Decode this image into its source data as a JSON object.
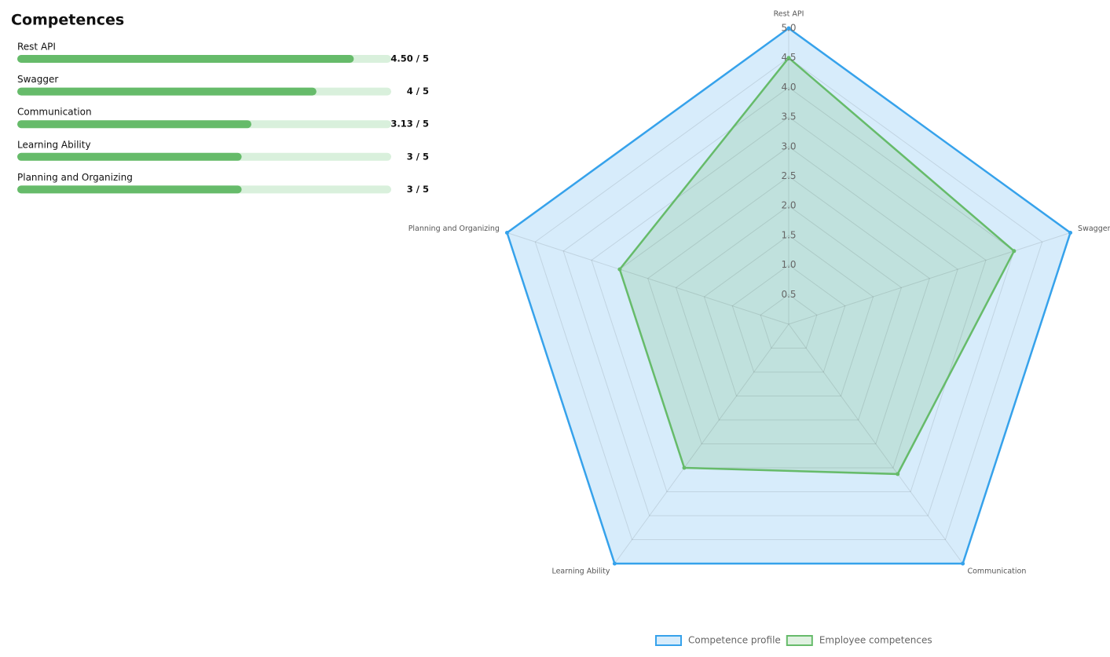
{
  "title": "Competences",
  "bars": {
    "max": 5,
    "items": [
      {
        "label": "Rest API",
        "value": 4.5,
        "value_label": "4.50 / 5"
      },
      {
        "label": "Swagger",
        "value": 4,
        "value_label": "4 / 5"
      },
      {
        "label": "Communication",
        "value": 3.13,
        "value_label": "3.13 / 5"
      },
      {
        "label": "Learning Ability",
        "value": 3,
        "value_label": "3 / 5"
      },
      {
        "label": "Planning and Organizing",
        "value": 3,
        "value_label": "3 / 5"
      }
    ]
  },
  "chart_data": {
    "type": "radar",
    "categories": [
      "Rest API",
      "Swagger",
      "Communication",
      "Learning Ability",
      "Planning and Organizing"
    ],
    "rlim": [
      0,
      5
    ],
    "rticks": [
      0.5,
      {
        "value": 1,
        "label": "1.0"
      },
      1.5,
      {
        "value": 2,
        "label": "2.0"
      },
      2.5,
      {
        "value": 3,
        "label": "3.0"
      },
      3.5,
      {
        "value": 4,
        "label": "4.0"
      },
      4.5,
      {
        "value": 5,
        "label": "5.0"
      }
    ],
    "grid": true,
    "legend": "bottom",
    "series": [
      {
        "name": "Competence profile",
        "color": "#36a2eb",
        "values": [
          5,
          5,
          5,
          5,
          5
        ]
      },
      {
        "name": "Employee competences",
        "color": "#66bb6a",
        "values": [
          4.5,
          4,
          3.13,
          3,
          3
        ]
      }
    ]
  }
}
